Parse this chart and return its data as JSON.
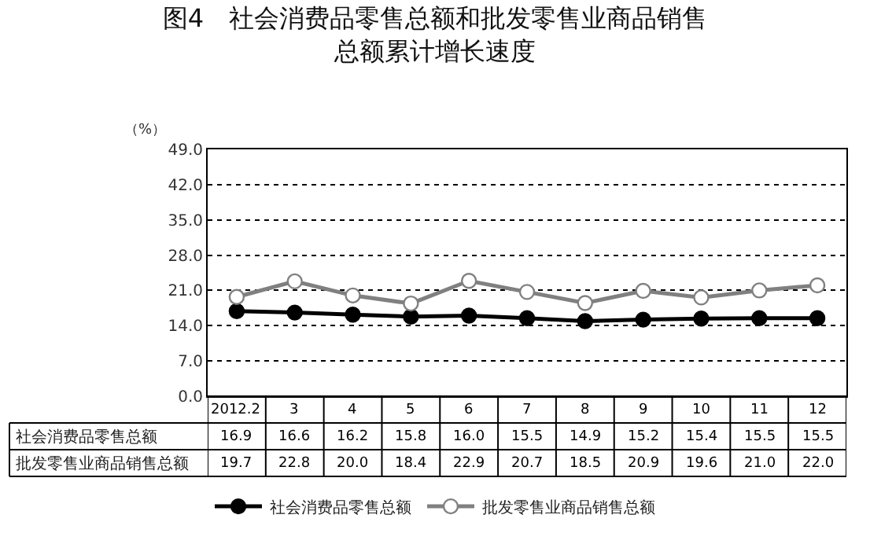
{
  "chart_data": {
    "type": "line",
    "title": "图4　社会消费品零售总额和批发零售业商品销售总额累计增长速度",
    "ylabel": "（%）",
    "categories": [
      "2012.2",
      "3",
      "4",
      "5",
      "6",
      "7",
      "8",
      "9",
      "10",
      "11",
      "12"
    ],
    "series": [
      {
        "name": "社会消费品零售总额",
        "color": "#000000",
        "values": [
          16.9,
          16.6,
          16.2,
          15.8,
          16.0,
          15.5,
          14.9,
          15.2,
          15.4,
          15.5,
          15.5
        ],
        "value_labels": [
          "16.9",
          "16.6",
          "16.2",
          "15.8",
          "16.0",
          "15.5",
          "14.9",
          "15.2",
          "15.4",
          "15.5",
          "15.5"
        ]
      },
      {
        "name": "批发零售业商品销售总额",
        "color": "#808080",
        "values": [
          19.7,
          22.8,
          20.0,
          18.4,
          22.9,
          20.7,
          18.5,
          20.9,
          19.6,
          21.0,
          22.0
        ],
        "value_labels": [
          "19.7",
          "22.8",
          "20.0",
          "18.4",
          "22.9",
          "20.7",
          "18.5",
          "20.9",
          "19.6",
          "21.0",
          "22.0"
        ]
      }
    ],
    "ylim": [
      0,
      49
    ],
    "yticks": [
      {
        "value": 0,
        "label": "0.0"
      },
      {
        "value": 7,
        "label": "7.0"
      },
      {
        "value": 14,
        "label": "14.0"
      },
      {
        "value": 21,
        "label": "21.0"
      },
      {
        "value": 28,
        "label": "28.0"
      },
      {
        "value": 35,
        "label": "35.0"
      },
      {
        "value": 42,
        "label": "42.0"
      },
      {
        "value": 49,
        "label": "49.0"
      }
    ],
    "grid": "y",
    "marker": "circle",
    "line_style": "solid",
    "legend": "bottom"
  }
}
